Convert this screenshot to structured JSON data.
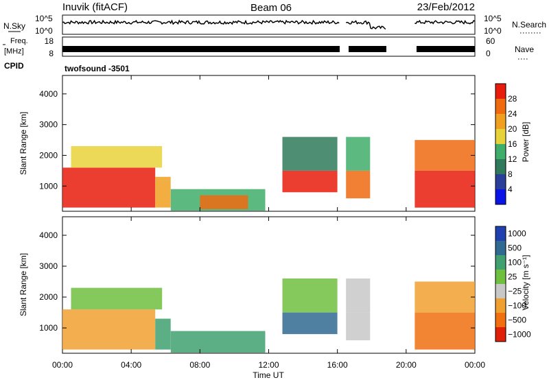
{
  "header": {
    "station": "Inuvik (fitACF)",
    "beam": "Beam 06",
    "date": "23/Feb/2012"
  },
  "panels": {
    "nsky": {
      "label": "N.Sky",
      "right_label": "N.Search",
      "ticks_left": [
        "10^5",
        "10^0"
      ],
      "ticks_right": [
        "10^5",
        "10^0"
      ]
    },
    "freq": {
      "label_line1": "Freq.",
      "label_line2": "[MHz]",
      "right_label": "Nave",
      "ticks_left": [
        "18",
        "8"
      ],
      "ticks_right": [
        "60",
        "0"
      ]
    },
    "cpid": {
      "label": "CPID",
      "text": "twofsound -3501"
    }
  },
  "colors": {
    "power_scale": [
      "#0a14e6",
      "#2a3f9a",
      "#2f7a5a",
      "#3fae6a",
      "#e8d23a",
      "#f0a020",
      "#f06a10",
      "#e81c0c"
    ],
    "velocity_scale": [
      "#2040b0",
      "#306a90",
      "#40a070",
      "#70c040",
      "#c8c8c8",
      "#f0a030",
      "#f07010",
      "#e02008"
    ],
    "frame": "#000000"
  },
  "chart_data": [
    {
      "type": "heatmap",
      "name": "power",
      "ylabel": "Slant Range [km]",
      "ylim": [
        180,
        4600
      ],
      "yticks": [
        "1000",
        "2000",
        "3000",
        "4000"
      ],
      "xlim": [
        0,
        24
      ],
      "colorbar": {
        "label": "Power [dB]",
        "ticks": [
          "4",
          "8",
          "12",
          "16",
          "20",
          "24",
          "28"
        ]
      },
      "regions": [
        {
          "t0": 0.0,
          "t1": 5.4,
          "r0": 300,
          "r1": 1600,
          "level": 7
        },
        {
          "t0": 0.5,
          "t1": 5.8,
          "r0": 1600,
          "r1": 2300,
          "level": 4
        },
        {
          "t0": 5.4,
          "t1": 6.3,
          "r0": 300,
          "r1": 1300,
          "level": 5
        },
        {
          "t0": 6.3,
          "t1": 11.8,
          "r0": 200,
          "r1": 900,
          "level": 3
        },
        {
          "t0": 8.0,
          "t1": 10.8,
          "r0": 250,
          "r1": 700,
          "level": 6
        },
        {
          "t0": 12.8,
          "t1": 16.0,
          "r0": 800,
          "r1": 1500,
          "level": 7
        },
        {
          "t0": 12.8,
          "t1": 16.0,
          "r0": 1500,
          "r1": 2600,
          "level": 2
        },
        {
          "t0": 16.5,
          "t1": 17.9,
          "r0": 600,
          "r1": 1500,
          "level": 6
        },
        {
          "t0": 16.5,
          "t1": 17.9,
          "r0": 1500,
          "r1": 2600,
          "level": 3
        },
        {
          "t0": 20.5,
          "t1": 24.0,
          "r0": 300,
          "r1": 1500,
          "level": 7
        },
        {
          "t0": 20.5,
          "t1": 24.0,
          "r0": 1500,
          "r1": 2500,
          "level": 6
        }
      ]
    },
    {
      "type": "heatmap",
      "name": "velocity",
      "xlabel": "Time UT",
      "ylabel": "Slant Range [km]",
      "ylim": [
        180,
        4600
      ],
      "yticks": [
        "1000",
        "2000",
        "3000",
        "4000"
      ],
      "xlim": [
        0,
        24
      ],
      "xticks": [
        "00:00",
        "04:00",
        "08:00",
        "12:00",
        "16:00",
        "20:00",
        "00:00"
      ],
      "colorbar": {
        "label": "Velocity [m s⁻¹]",
        "ticks": [
          "1000",
          "500",
          "100",
          "25",
          "−25",
          "−100",
          "−500",
          "−1000"
        ]
      },
      "regions": [
        {
          "t0": 0.0,
          "t1": 5.4,
          "r0": 300,
          "r1": 1600,
          "level": 5
        },
        {
          "t0": 0.5,
          "t1": 5.8,
          "r0": 1600,
          "r1": 2300,
          "level": 3
        },
        {
          "t0": 5.4,
          "t1": 6.3,
          "r0": 300,
          "r1": 1300,
          "level": 2
        },
        {
          "t0": 6.3,
          "t1": 11.8,
          "r0": 200,
          "r1": 900,
          "level": 2
        },
        {
          "t0": 12.8,
          "t1": 16.0,
          "r0": 800,
          "r1": 1500,
          "level": 1
        },
        {
          "t0": 12.8,
          "t1": 16.0,
          "r0": 1500,
          "r1": 2600,
          "level": 3
        },
        {
          "t0": 16.5,
          "t1": 17.9,
          "r0": 600,
          "r1": 1500,
          "level": 4
        },
        {
          "t0": 16.5,
          "t1": 17.9,
          "r0": 1500,
          "r1": 2600,
          "level": 4
        },
        {
          "t0": 20.5,
          "t1": 24.0,
          "r0": 300,
          "r1": 1500,
          "level": 6
        },
        {
          "t0": 20.5,
          "t1": 24.0,
          "r0": 1500,
          "r1": 2500,
          "level": 5
        }
      ]
    }
  ]
}
